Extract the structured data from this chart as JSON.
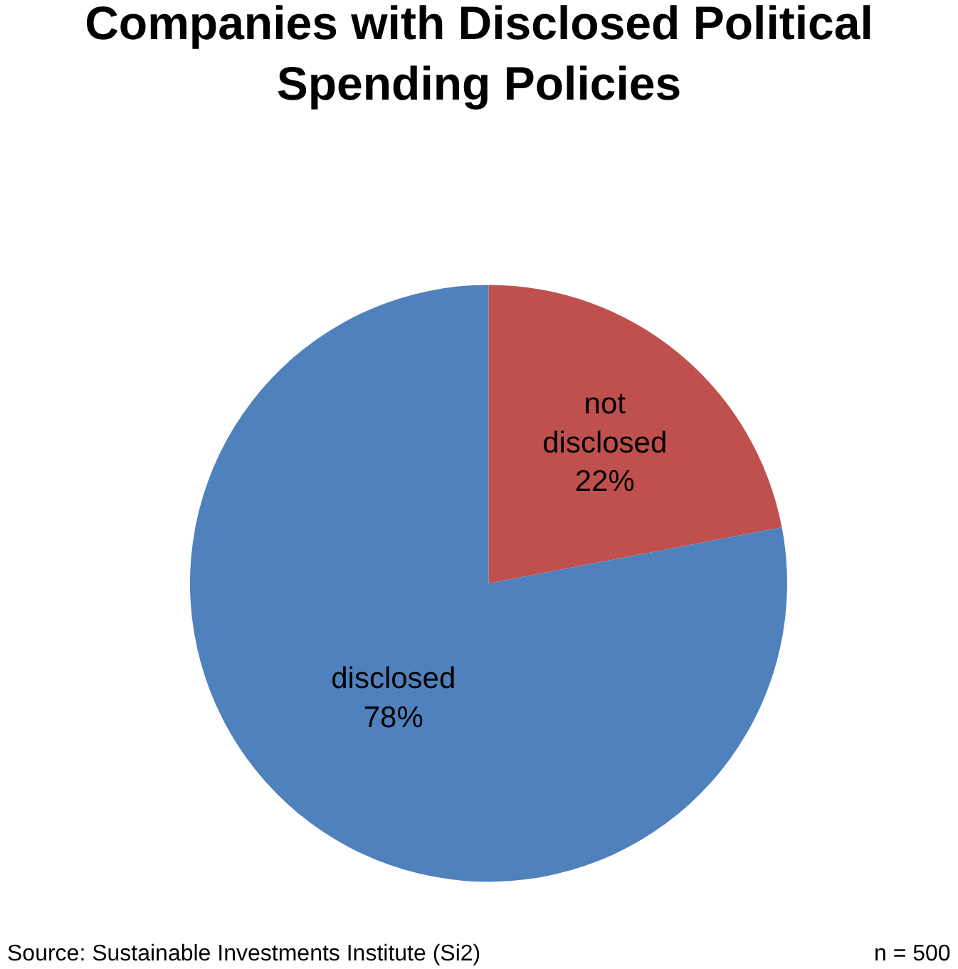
{
  "chart_data": {
    "type": "pie",
    "title": "Companies with Disclosed Political Spending Policies",
    "categories": [
      "not disclosed",
      "disclosed"
    ],
    "values": [
      22,
      78
    ],
    "colors": [
      "#c0504d",
      "#4f81bd"
    ],
    "value_labels": [
      "22%",
      "78%"
    ],
    "legend": false,
    "annotations": [
      "Source: Sustainable Investments Institute (Si2)",
      "n = 500"
    ]
  }
}
